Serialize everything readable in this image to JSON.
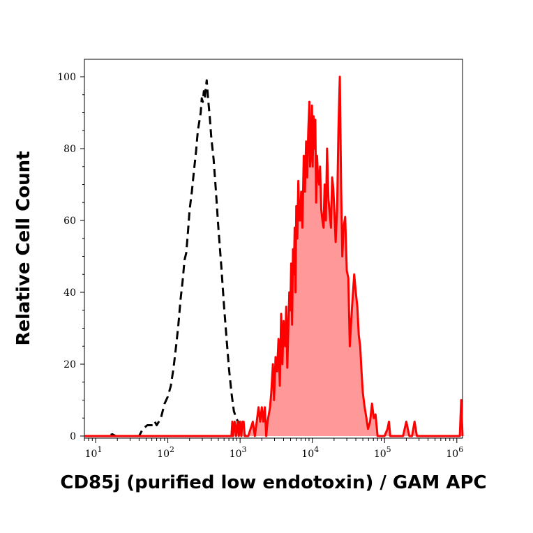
{
  "chart_data": {
    "type": "area",
    "title": "",
    "xlabel": "CD85j (purified low endotoxin) / GAM APC",
    "ylabel": "Relative Cell Count",
    "x_scale": "log",
    "xlim": [
      7,
      1200000
    ],
    "ylim": [
      0,
      100
    ],
    "x_ticks": [
      {
        "base": "10",
        "exp": "1",
        "value": 10
      },
      {
        "base": "10",
        "exp": "2",
        "value": 100
      },
      {
        "base": "10",
        "exp": "3",
        "value": 1000
      },
      {
        "base": "10",
        "exp": "4",
        "value": 10000
      },
      {
        "base": "10",
        "exp": "5",
        "value": 100000
      },
      {
        "base": "10",
        "exp": "6",
        "value": 1000000
      }
    ],
    "y_ticks": [
      {
        "label": "0",
        "value": 0
      },
      {
        "label": "20",
        "value": 20
      },
      {
        "label": "40",
        "value": 40
      },
      {
        "label": "60",
        "value": 60
      },
      {
        "label": "80",
        "value": 80
      },
      {
        "label": "100",
        "value": 100
      }
    ],
    "grid": false,
    "legend": "none",
    "series": [
      {
        "style": "dashed-line",
        "color": "#000000",
        "points": [
          [
            7,
            0
          ],
          [
            15,
            0
          ],
          [
            17,
            0.5
          ],
          [
            19,
            0
          ],
          [
            40,
            0
          ],
          [
            45,
            2
          ],
          [
            52,
            3
          ],
          [
            58,
            3
          ],
          [
            63,
            3
          ],
          [
            66,
            4
          ],
          [
            70,
            3
          ],
          [
            75,
            4
          ],
          [
            80,
            5
          ],
          [
            90,
            9
          ],
          [
            100,
            11
          ],
          [
            110,
            14
          ],
          [
            120,
            19
          ],
          [
            130,
            25
          ],
          [
            140,
            31
          ],
          [
            150,
            38
          ],
          [
            160,
            43
          ],
          [
            170,
            49
          ],
          [
            180,
            51
          ],
          [
            190,
            57
          ],
          [
            200,
            63
          ],
          [
            215,
            68
          ],
          [
            230,
            74
          ],
          [
            245,
            79
          ],
          [
            260,
            85
          ],
          [
            275,
            88
          ],
          [
            285,
            90
          ],
          [
            295,
            94
          ],
          [
            305,
            93
          ],
          [
            315,
            96
          ],
          [
            325,
            94
          ],
          [
            335,
            97
          ],
          [
            345,
            99
          ],
          [
            360,
            94
          ],
          [
            380,
            89
          ],
          [
            400,
            83
          ],
          [
            430,
            77
          ],
          [
            460,
            69
          ],
          [
            500,
            58
          ],
          [
            550,
            47
          ],
          [
            600,
            36
          ],
          [
            650,
            27
          ],
          [
            700,
            19
          ],
          [
            760,
            12
          ],
          [
            820,
            7
          ],
          [
            880,
            5
          ],
          [
            1000,
            3
          ],
          [
            1100,
            1
          ],
          [
            1200,
            0
          ]
        ]
      },
      {
        "style": "filled-area",
        "color": "#ff0000",
        "fill": "#ff9999",
        "points": [
          [
            7,
            0
          ],
          [
            760,
            0
          ],
          [
            780,
            4
          ],
          [
            800,
            0
          ],
          [
            840,
            4
          ],
          [
            880,
            0
          ],
          [
            920,
            4
          ],
          [
            960,
            0
          ],
          [
            1000,
            4
          ],
          [
            1040,
            0
          ],
          [
            1080,
            4
          ],
          [
            1120,
            4
          ],
          [
            1160,
            0
          ],
          [
            1300,
            0
          ],
          [
            1500,
            4
          ],
          [
            1600,
            0
          ],
          [
            1700,
            4
          ],
          [
            1800,
            8
          ],
          [
            1900,
            4
          ],
          [
            2000,
            8
          ],
          [
            2100,
            4
          ],
          [
            2200,
            8
          ],
          [
            2300,
            0
          ],
          [
            2400,
            4
          ],
          [
            2600,
            8
          ],
          [
            2700,
            12
          ],
          [
            2850,
            20
          ],
          [
            2950,
            10
          ],
          [
            3100,
            22
          ],
          [
            3250,
            18
          ],
          [
            3400,
            27
          ],
          [
            3550,
            14
          ],
          [
            3700,
            34
          ],
          [
            3850,
            20
          ],
          [
            4000,
            32
          ],
          [
            4200,
            25
          ],
          [
            4350,
            36
          ],
          [
            4500,
            19
          ],
          [
            4650,
            30
          ],
          [
            4800,
            40
          ],
          [
            4950,
            35
          ],
          [
            5100,
            48
          ],
          [
            5250,
            31
          ],
          [
            5400,
            52
          ],
          [
            5550,
            45
          ],
          [
            5700,
            58
          ],
          [
            5850,
            40
          ],
          [
            6000,
            64
          ],
          [
            6200,
            55
          ],
          [
            6400,
            71
          ],
          [
            6600,
            60
          ],
          [
            6800,
            60
          ],
          [
            7000,
            68
          ],
          [
            7300,
            58
          ],
          [
            7600,
            78
          ],
          [
            7900,
            68
          ],
          [
            8200,
            82
          ],
          [
            8500,
            72
          ],
          [
            8800,
            85
          ],
          [
            9100,
            93
          ],
          [
            9300,
            75
          ],
          [
            9500,
            78
          ],
          [
            9700,
            85
          ],
          [
            9900,
            92
          ],
          [
            10100,
            75
          ],
          [
            10400,
            89
          ],
          [
            10700,
            80
          ],
          [
            11000,
            88
          ],
          [
            11300,
            65
          ],
          [
            11600,
            78
          ],
          [
            12000,
            72
          ],
          [
            12400,
            70
          ],
          [
            12800,
            75
          ],
          [
            13300,
            63
          ],
          [
            13800,
            60
          ],
          [
            14300,
            58
          ],
          [
            14800,
            70
          ],
          [
            15400,
            60
          ],
          [
            16000,
            80
          ],
          [
            16700,
            66
          ],
          [
            17400,
            62
          ],
          [
            18100,
            58
          ],
          [
            18800,
            72
          ],
          [
            19500,
            69
          ],
          [
            20300,
            62
          ],
          [
            21000,
            54
          ],
          [
            22000,
            63
          ],
          [
            23000,
            86
          ],
          [
            24000,
            100
          ],
          [
            25000,
            70
          ],
          [
            26000,
            50
          ],
          [
            27000,
            58
          ],
          [
            28500,
            61
          ],
          [
            30000,
            46
          ],
          [
            31500,
            44
          ],
          [
            33000,
            25
          ],
          [
            34500,
            32
          ],
          [
            36000,
            38
          ],
          [
            38000,
            45
          ],
          [
            40000,
            40
          ],
          [
            42000,
            36
          ],
          [
            44000,
            28
          ],
          [
            46000,
            25
          ],
          [
            48000,
            18
          ],
          [
            50000,
            12
          ],
          [
            53000,
            8
          ],
          [
            56000,
            5
          ],
          [
            59000,
            2
          ],
          [
            63000,
            4
          ],
          [
            67000,
            9
          ],
          [
            71000,
            5
          ],
          [
            75000,
            6
          ],
          [
            80000,
            0
          ],
          [
            90000,
            0
          ],
          [
            100000,
            0
          ],
          [
            110000,
            2
          ],
          [
            115000,
            4
          ],
          [
            120000,
            0
          ],
          [
            180000,
            0
          ],
          [
            200000,
            4
          ],
          [
            220000,
            0
          ],
          [
            240000,
            0
          ],
          [
            260000,
            4
          ],
          [
            280000,
            0
          ],
          [
            1000000,
            0
          ],
          [
            1100000,
            0
          ],
          [
            1150000,
            10
          ],
          [
            1200000,
            0
          ]
        ]
      }
    ]
  }
}
